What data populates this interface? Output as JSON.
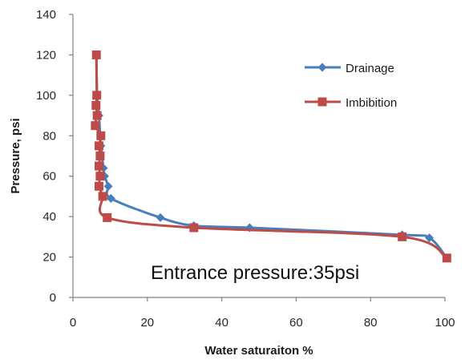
{
  "chart_data": {
    "type": "line",
    "xlabel": "Water saturaiton %",
    "ylabel": "Pressure, psi",
    "xlim": [
      0,
      100
    ],
    "ylim": [
      0,
      140
    ],
    "x_ticks": [
      "0",
      "20",
      "40",
      "60",
      "80",
      "100"
    ],
    "y_ticks": [
      "0",
      "20",
      "40",
      "60",
      "80",
      "100",
      "120",
      "140"
    ],
    "grid": false,
    "legend_position": "top-right",
    "annotation": "Entrance pressure:35psi",
    "series": [
      {
        "name": "Drainage",
        "color": "#4a7ebb",
        "marker": "diamond",
        "points": [
          {
            "x": 100.5,
            "y": 19.5
          },
          {
            "x": 95.8,
            "y": 29.5
          },
          {
            "x": 88.5,
            "y": 31
          },
          {
            "x": 47.5,
            "y": 34.5
          },
          {
            "x": 32.5,
            "y": 35.5
          },
          {
            "x": 23.5,
            "y": 39.5
          },
          {
            "x": 10.2,
            "y": 49
          },
          {
            "x": 9.5,
            "y": 55
          },
          {
            "x": 8.5,
            "y": 60
          },
          {
            "x": 8.2,
            "y": 64
          },
          {
            "x": 7.5,
            "y": 75
          },
          {
            "x": 7,
            "y": 90
          },
          {
            "x": 6.5,
            "y": 100
          },
          {
            "x": 6.3,
            "y": 120
          }
        ]
      },
      {
        "name": "Imbibition",
        "color": "#be4b48",
        "marker": "square",
        "points": [
          {
            "x": 6.3,
            "y": 120
          },
          {
            "x": 6.4,
            "y": 100
          },
          {
            "x": 6.2,
            "y": 95
          },
          {
            "x": 6.5,
            "y": 90
          },
          {
            "x": 6.0,
            "y": 85
          },
          {
            "x": 7.5,
            "y": 80
          },
          {
            "x": 7.0,
            "y": 75
          },
          {
            "x": 7.3,
            "y": 70
          },
          {
            "x": 7.0,
            "y": 65
          },
          {
            "x": 7.3,
            "y": 60
          },
          {
            "x": 7.0,
            "y": 55
          },
          {
            "x": 8.0,
            "y": 50
          },
          {
            "x": 9.2,
            "y": 39.5
          },
          {
            "x": 32.5,
            "y": 34.5
          },
          {
            "x": 88.5,
            "y": 30
          },
          {
            "x": 100.5,
            "y": 19.5
          }
        ]
      }
    ]
  }
}
